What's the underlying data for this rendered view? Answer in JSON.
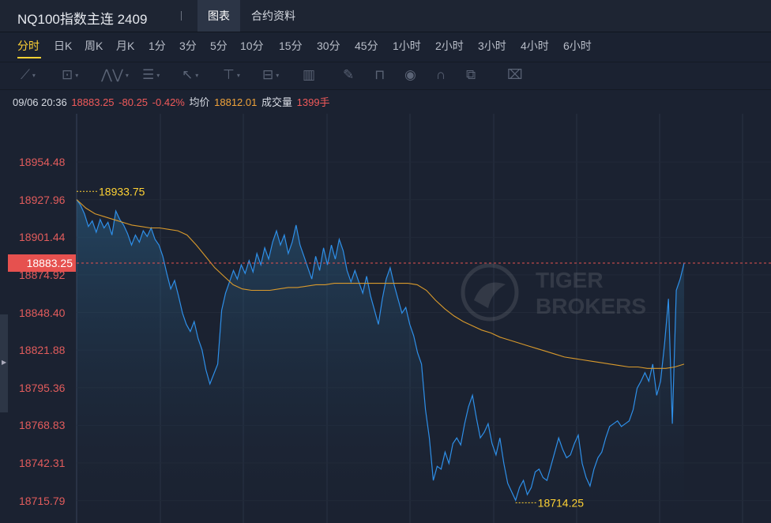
{
  "header": {
    "title": "NQ100指数主连 2409",
    "tabs": [
      {
        "label": "图表",
        "active": true
      },
      {
        "label": "合约资料",
        "active": false
      }
    ]
  },
  "periods": [
    "分时",
    "日K",
    "周K",
    "月K",
    "1分",
    "3分",
    "5分",
    "10分",
    "15分",
    "30分",
    "45分",
    "1小时",
    "2小时",
    "3小时",
    "4小时",
    "6小时"
  ],
  "active_period": "分时",
  "toolbar_icons": [
    "line-tool-icon",
    "rect-tool-icon",
    "wave-tool-icon",
    "fib-tool-icon",
    "arrow-tool-icon",
    "text-tool-icon",
    "measure-tool-icon",
    "bars-tool-icon",
    "pen-icon",
    "lock-icon",
    "eye-icon",
    "magnet-icon",
    "layers-icon",
    "trash-icon"
  ],
  "info": {
    "datetime": "09/06 20:36",
    "price": "18883.25",
    "change": "-80.25",
    "change_pct": "-0.42%",
    "avg_label": "均价",
    "avg_value": "18812.01",
    "volume_label": "成交量",
    "volume_value": "1399手"
  },
  "current_price_tag": "18883.25",
  "watermark": {
    "line1": "TIGER",
    "line2": "BROKERS"
  },
  "colors": {
    "price_line": "#2e8fe8",
    "avg_line": "#d99a2c",
    "axis_labels": "#e25c5c",
    "high_low_labels": "#ffd234",
    "current_price": "#e6514f"
  },
  "chart_data": {
    "type": "line",
    "y_ticks": [
      18954.48,
      18927.96,
      18901.44,
      18874.92,
      18848.4,
      18821.88,
      18795.36,
      18768.83,
      18742.31,
      18715.79
    ],
    "ylim": [
      18700.0,
      18988.5
    ],
    "high": {
      "value": 18933.75,
      "label": "18933.75"
    },
    "low": {
      "value": 18714.25,
      "label": "18714.25"
    },
    "current": 18883.25,
    "series": [
      {
        "values": [
          18928,
          18924,
          18918,
          18909,
          18913,
          18905,
          18914,
          18908,
          18912,
          18903,
          18920,
          18914,
          18910,
          18904,
          18896,
          18903,
          18898,
          18906,
          18902,
          18908,
          18900,
          18896,
          18888,
          18876,
          18865,
          18871,
          18860,
          18848,
          18840,
          18835,
          18842,
          18830,
          18822,
          18808,
          18798,
          18805,
          18812,
          18850,
          18862,
          18870,
          18878,
          18872,
          18882,
          18876,
          18885,
          18877,
          18890,
          18882,
          18894,
          18886,
          18898,
          18906,
          18896,
          18903,
          18890,
          18898,
          18910,
          18896,
          18888,
          18880,
          18872,
          18888,
          18878,
          18894,
          18882,
          18896,
          18886,
          18900,
          18892,
          18878,
          18870,
          18878,
          18870,
          18862,
          18874,
          18860,
          18850,
          18840,
          18858,
          18872,
          18880,
          18868,
          18858,
          18848,
          18852,
          18840,
          18832,
          18820,
          18812,
          18780,
          18760,
          18730,
          18740,
          18738,
          18750,
          18742,
          18756,
          18760,
          18755,
          18770,
          18782,
          18790,
          18774,
          18760,
          18764,
          18770,
          18756,
          18748,
          18760,
          18742,
          18728,
          18722,
          18716,
          18725,
          18730,
          18720,
          18725,
          18736,
          18738,
          18732,
          18730,
          18740,
          18750,
          18760,
          18752,
          18746,
          18748,
          18756,
          18762,
          18742,
          18732,
          18726,
          18738,
          18746,
          18750,
          18760,
          18768,
          18770,
          18772,
          18768,
          18770,
          18772,
          18780,
          18795,
          18800,
          18806,
          18800,
          18812,
          18790,
          18800,
          18826,
          18858,
          18770,
          18864,
          18872,
          18883.25
        ]
      },
      {
        "name": "均价",
        "values": [
          18928,
          18922,
          18918,
          18916,
          18914,
          18912,
          18910,
          18909,
          18908,
          18908,
          18907,
          18906,
          18903,
          18896,
          18888,
          18880,
          18874,
          18868,
          18865,
          18864,
          18864,
          18864,
          18865,
          18866,
          18866,
          18867,
          18868,
          18868,
          18869,
          18869,
          18869,
          18869,
          18869,
          18869,
          18869,
          18869,
          18869,
          18868,
          18864,
          18857,
          18851,
          18846,
          18842,
          18839,
          18836,
          18834,
          18831,
          18829,
          18827,
          18825,
          18823,
          18821,
          18819,
          18817,
          18816,
          18815,
          18814,
          18813,
          18812,
          18811,
          18810,
          18810,
          18809,
          18809,
          18809,
          18810,
          18812
        ]
      }
    ],
    "grid": true
  }
}
